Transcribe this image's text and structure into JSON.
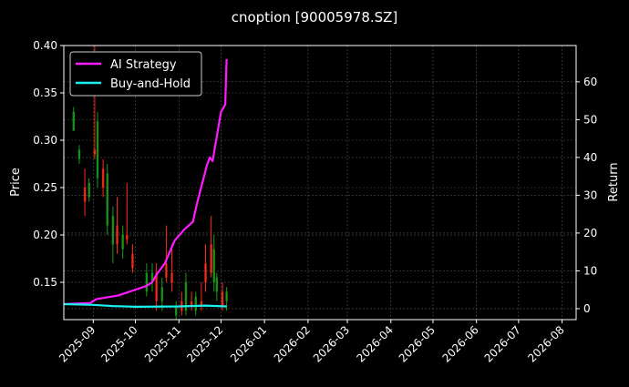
{
  "chart_data": {
    "type": "candlestick+line",
    "title": "cnoption [90005978.SZ]",
    "ylabel_left": "Price",
    "ylabel_right": "Return",
    "xlim": [
      "2025-08-11",
      "2026-08-11"
    ],
    "ylim_left": [
      0.1106,
      0.4
    ],
    "ylim_right": [
      -2.9,
      69.6
    ],
    "grid": true,
    "legend_placement": "top-left",
    "x_ticks": [
      "2025-09",
      "2025-10",
      "2025-11",
      "2025-12",
      "2026-01",
      "2026-02",
      "2026-03",
      "2026-04",
      "2026-05",
      "2026-06",
      "2026-07",
      "2026-08"
    ],
    "y_ticks_left": [
      "0.15",
      "0.20",
      "0.25",
      "0.30",
      "0.35",
      "0.40"
    ],
    "y_ticks_right": [
      "0",
      "10",
      "20",
      "30",
      "40",
      "50",
      "60"
    ],
    "colors": {
      "up": "#1a9a1a",
      "down": "#ff2a1a",
      "strategy": "#ff1aff",
      "buyhold": "#1af0f0",
      "background": "#000000",
      "grid": "#555555"
    },
    "candles": [
      [
        "2025-08-18",
        0.31,
        0.335,
        0.31,
        0.33
      ],
      [
        "2025-08-22",
        0.28,
        0.295,
        0.275,
        0.29
      ],
      [
        "2025-08-26",
        0.25,
        0.27,
        0.22,
        0.235
      ],
      [
        "2025-08-29",
        0.24,
        0.26,
        0.235,
        0.255
      ],
      [
        "2025-09-02",
        0.29,
        0.4,
        0.28,
        0.285
      ],
      [
        "2025-09-04",
        0.26,
        0.33,
        0.25,
        0.32
      ],
      [
        "2025-09-08",
        0.27,
        0.28,
        0.24,
        0.25
      ],
      [
        "2025-09-11",
        0.21,
        0.275,
        0.2,
        0.265
      ],
      [
        "2025-09-15",
        0.19,
        0.23,
        0.17,
        0.22
      ],
      [
        "2025-09-18",
        0.21,
        0.24,
        0.18,
        0.19
      ],
      [
        "2025-09-22",
        0.185,
        0.21,
        0.175,
        0.2
      ],
      [
        "2025-09-25",
        0.2,
        0.255,
        0.19,
        0.195
      ],
      [
        "2025-09-29",
        0.18,
        0.19,
        0.16,
        0.165
      ],
      [
        "2025-10-09",
        0.14,
        0.17,
        0.135,
        0.16
      ],
      [
        "2025-10-13",
        0.15,
        0.17,
        0.14,
        0.16
      ],
      [
        "2025-10-16",
        0.16,
        0.17,
        0.12,
        0.13
      ],
      [
        "2025-10-20",
        0.13,
        0.155,
        0.12,
        0.145
      ],
      [
        "2025-10-23",
        0.17,
        0.21,
        0.15,
        0.155
      ],
      [
        "2025-10-27",
        0.16,
        0.19,
        0.14,
        0.15
      ],
      [
        "2025-10-30",
        0.115,
        0.13,
        0.11,
        0.125
      ],
      [
        "2025-11-03",
        0.13,
        0.14,
        0.115,
        0.12
      ],
      [
        "2025-11-06",
        0.12,
        0.16,
        0.115,
        0.15
      ],
      [
        "2025-11-10",
        0.13,
        0.14,
        0.12,
        0.125
      ],
      [
        "2025-11-13",
        0.12,
        0.14,
        0.115,
        0.135
      ],
      [
        "2025-11-17",
        0.13,
        0.15,
        0.12,
        0.125
      ],
      [
        "2025-11-20",
        0.17,
        0.19,
        0.14,
        0.15
      ],
      [
        "2025-11-24",
        0.19,
        0.22,
        0.155,
        0.16
      ],
      [
        "2025-11-26",
        0.15,
        0.2,
        0.14,
        0.185
      ],
      [
        "2025-11-28",
        0.14,
        0.16,
        0.13,
        0.155
      ],
      [
        "2025-12-02",
        0.14,
        0.15,
        0.12,
        0.125
      ],
      [
        "2025-12-05",
        0.13,
        0.145,
        0.12,
        0.14
      ]
    ],
    "series": [
      {
        "name": "AI Strategy",
        "x": [
          "2025-08-11",
          "2025-08-30",
          "2025-09-03",
          "2025-09-19",
          "2025-10-09",
          "2025-10-13",
          "2025-10-16",
          "2025-10-22",
          "2025-10-29",
          "2025-11-05",
          "2025-11-11",
          "2025-11-14",
          "2025-11-21",
          "2025-11-23",
          "2025-11-25",
          "2025-12-01",
          "2025-12-04",
          "2025-12-05"
        ],
        "values": [
          1.2,
          1.5,
          2.5,
          3.5,
          6,
          7,
          9,
          12,
          18,
          21,
          23,
          28,
          38,
          40,
          39,
          52,
          54,
          66
        ]
      },
      {
        "name": "Buy-and-Hold",
        "x": [
          "2025-08-11",
          "2025-09-01",
          "2025-09-15",
          "2025-10-01",
          "2025-11-01",
          "2025-11-20",
          "2025-12-05"
        ],
        "values": [
          1.2,
          1.0,
          0.7,
          0.5,
          0.6,
          0.8,
          0.6
        ]
      }
    ]
  }
}
